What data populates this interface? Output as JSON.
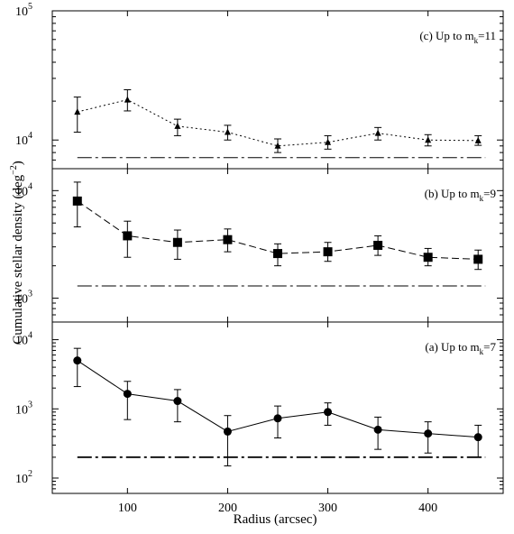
{
  "chart_data": [
    {
      "type": "line",
      "panel_label": "(c) Up to m",
      "panel_label_sub": "k",
      "panel_label_tail": "=11",
      "yscale": "log",
      "ylim": [
        6000,
        100000
      ],
      "yticks": [
        {
          "value": 10000,
          "base": "10",
          "exp": "4"
        },
        {
          "value": 100000,
          "base": "10",
          "exp": "5"
        }
      ],
      "marker": "triangle",
      "line_style": "dotted",
      "x": [
        50,
        100,
        150,
        200,
        250,
        300,
        350,
        400,
        450
      ],
      "values": [
        16500,
        20500,
        12800,
        11500,
        9000,
        9600,
        11300,
        10000,
        9900
      ],
      "err_low": [
        11500,
        16800,
        10800,
        10000,
        8000,
        8500,
        10000,
        9000,
        9100
      ],
      "err_high": [
        21500,
        24500,
        14500,
        13000,
        10200,
        10800,
        12500,
        11000,
        10800
      ],
      "reference": 7300
    },
    {
      "type": "line",
      "panel_label": "(b) Up to m",
      "panel_label_sub": "k",
      "panel_label_tail": "=9",
      "yscale": "log",
      "ylim": [
        600,
        16000
      ],
      "yticks": [
        {
          "value": 1000,
          "base": "10",
          "exp": "3"
        },
        {
          "value": 10000,
          "base": "10",
          "exp": "4"
        }
      ],
      "marker": "square",
      "line_style": "dashed",
      "x": [
        50,
        100,
        150,
        200,
        250,
        300,
        350,
        400,
        450
      ],
      "values": [
        8000,
        3800,
        3300,
        3500,
        2600,
        2700,
        3100,
        2400,
        2300
      ],
      "err_low": [
        4600,
        2400,
        2300,
        2700,
        2000,
        2200,
        2500,
        2000,
        1850
      ],
      "err_high": [
        12000,
        5200,
        4300,
        4400,
        3200,
        3300,
        3800,
        2900,
        2800
      ],
      "reference": 1300
    },
    {
      "type": "line",
      "panel_label": "(a) Up to m",
      "panel_label_sub": "k",
      "panel_label_tail": "=7",
      "yscale": "log",
      "ylim": [
        60,
        18000
      ],
      "yticks": [
        {
          "value": 100,
          "base": "10",
          "exp": "2"
        },
        {
          "value": 1000,
          "base": "10",
          "exp": "3"
        },
        {
          "value": 10000,
          "base": "10",
          "exp": "4"
        }
      ],
      "marker": "circle",
      "line_style": "solid",
      "x": [
        50,
        100,
        150,
        200,
        250,
        300,
        350,
        400,
        450
      ],
      "values": [
        5000,
        1650,
        1300,
        470,
        730,
        900,
        500,
        440,
        390
      ],
      "err_low": [
        2100,
        700,
        650,
        150,
        380,
        580,
        260,
        230,
        200
      ],
      "err_high": [
        7500,
        2500,
        1900,
        800,
        1100,
        1220,
        760,
        650,
        580
      ],
      "reference": 200
    }
  ],
  "xaxis": {
    "label": "Radius (arcsec)",
    "lim": [
      25,
      475
    ],
    "ticks": [
      100,
      200,
      300,
      400
    ]
  },
  "yaxis": {
    "label": "Cumulative stellar density (deg",
    "label_sup": "−2",
    "label_tail": ")"
  }
}
